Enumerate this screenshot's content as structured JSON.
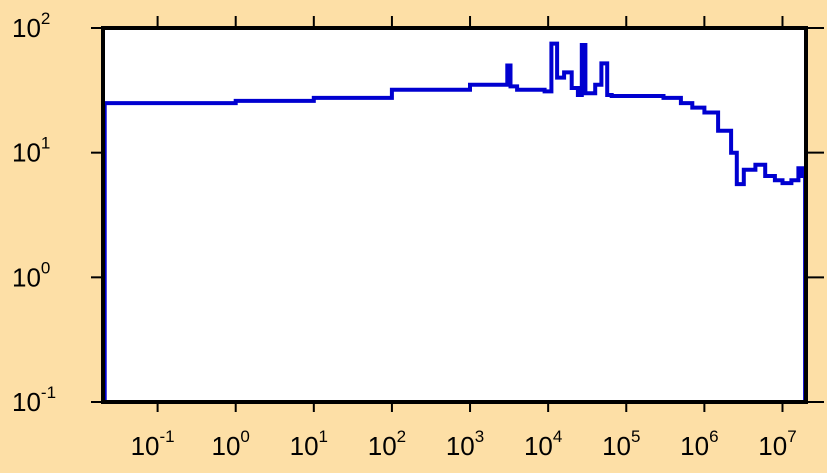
{
  "colors": {
    "background": "#fddfa6",
    "plot_area": "#ffffff",
    "frame": "#000000",
    "series_line": "#0000d0"
  },
  "chart_data": {
    "type": "line",
    "step": true,
    "title": "",
    "xlabel": "",
    "ylabel": "",
    "xscale": "log",
    "yscale": "log",
    "xlim": [
      0.02,
      20000000
    ],
    "ylim": [
      0.1,
      100
    ],
    "grid": false,
    "legend": "none",
    "x_ticks": [
      {
        "base": "10",
        "exp": "-1",
        "value": 0.1
      },
      {
        "base": "10",
        "exp": "0",
        "value": 1
      },
      {
        "base": "10",
        "exp": "1",
        "value": 10
      },
      {
        "base": "10",
        "exp": "2",
        "value": 100
      },
      {
        "base": "10",
        "exp": "3",
        "value": 1000
      },
      {
        "base": "10",
        "exp": "4",
        "value": 10000
      },
      {
        "base": "10",
        "exp": "5",
        "value": 100000
      },
      {
        "base": "10",
        "exp": "6",
        "value": 1000000
      },
      {
        "base": "10",
        "exp": "7",
        "value": 10000000
      }
    ],
    "y_ticks": [
      {
        "base": "10",
        "exp": "-1",
        "value": 0.1
      },
      {
        "base": "10",
        "exp": "0",
        "value": 1
      },
      {
        "base": "10",
        "exp": "1",
        "value": 10
      },
      {
        "base": "10",
        "exp": "2",
        "value": 100
      }
    ],
    "series": [
      {
        "x": [
          0.02,
          0.021,
          1.0,
          10.0,
          100.0,
          1000.0,
          3000.0,
          3300.0,
          4000.0,
          9000.0,
          11000.0,
          13000.0,
          16000.0,
          20000.0,
          24000.0,
          27000.0,
          30000.0,
          40000.0,
          48000.0,
          57000.0,
          65000.0,
          300000.0,
          500000.0,
          700000.0,
          1000000.0,
          1500000.0,
          2200000.0,
          2600000.0,
          3200000.0,
          4500000.0,
          6000000.0,
          8000000.0,
          10000000.0,
          13000000.0,
          16000000.0,
          18000000.0,
          19500000.0
        ],
        "y": [
          0.1,
          25,
          26,
          27.5,
          32,
          35,
          50,
          34,
          32,
          31,
          75,
          40,
          44,
          33,
          29,
          73,
          30,
          35,
          52,
          29,
          28.5,
          27.5,
          25,
          23,
          21,
          15,
          10,
          5.6,
          7.3,
          8,
          6.5,
          6.0,
          5.7,
          6.0,
          7.5,
          6.5,
          0.1
        ]
      }
    ]
  }
}
